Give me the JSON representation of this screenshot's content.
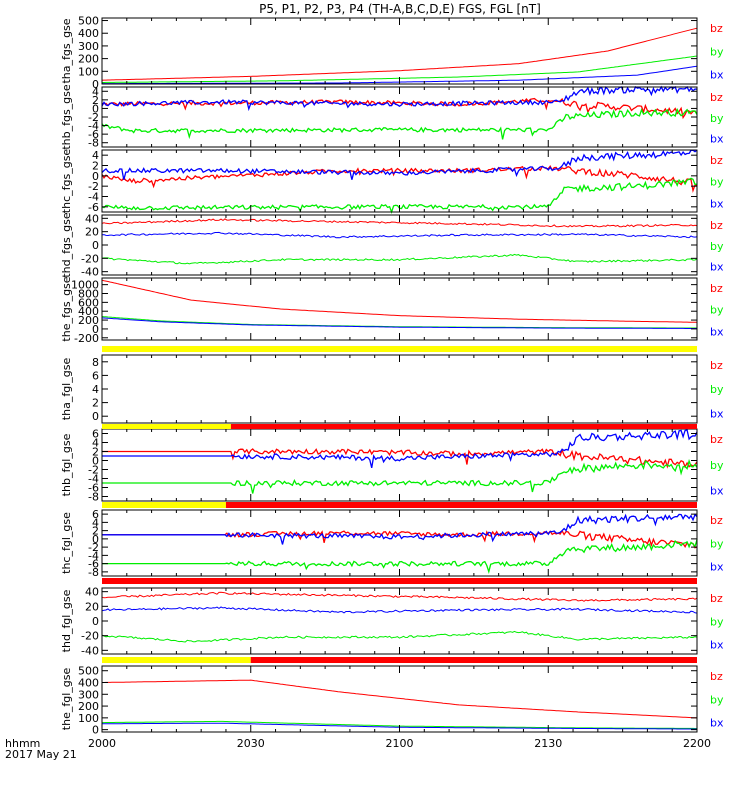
{
  "chart_data": {
    "type": "line",
    "title": "P5, P1, P2, P3, P4 (TH-A,B,C,D,E) FGS, FGL [nT]",
    "x_ticks": [
      "2000",
      "2030",
      "2100",
      "2130",
      "2200"
    ],
    "x_footer": {
      "line1": "hhmm",
      "line2": "2017 May 21"
    },
    "series_names": [
      "bz",
      "by",
      "bx"
    ],
    "colors": {
      "bz": "#ff0000",
      "by": "#00ee00",
      "bx": "#0000ff",
      "frame": "#000000",
      "flag_yellow": "#ffff00",
      "flag_red": "#ff0000"
    },
    "panels": [
      {
        "ylabel": "tha_fgs_gse",
        "ticks": [
          "0",
          "100",
          "200",
          "300",
          "400",
          "500"
        ],
        "ylim": [
          0,
          520
        ],
        "curves": {
          "bz": [
            [
              0,
              30
            ],
            [
              0.25,
              60
            ],
            [
              0.5,
              105
            ],
            [
              0.7,
              160
            ],
            [
              0.85,
              260
            ],
            [
              1,
              440
            ]
          ],
          "by": [
            [
              0,
              12
            ],
            [
              0.3,
              25
            ],
            [
              0.6,
              55
            ],
            [
              0.8,
              95
            ],
            [
              1,
              220
            ]
          ],
          "bx": [
            [
              0,
              3
            ],
            [
              0.4,
              8
            ],
            [
              0.7,
              30
            ],
            [
              0.9,
              70
            ],
            [
              1,
              140
            ]
          ]
        }
      },
      {
        "ylabel": "thb_fgs_gse",
        "ticks": [
          "-8",
          "-6",
          "-4",
          "-2",
          "0",
          "2",
          "4"
        ],
        "ylim": [
          -9,
          5
        ],
        "curves": {
          "bz": [
            [
              0,
              1
            ],
            [
              0.4,
              1.5
            ],
            [
              0.6,
              1
            ],
            [
              0.75,
              2
            ],
            [
              0.8,
              1
            ],
            [
              0.9,
              0
            ],
            [
              1,
              -1
            ]
          ],
          "by": [
            [
              0,
              -4
            ],
            [
              0.05,
              -5.2
            ],
            [
              0.45,
              -5
            ],
            [
              0.75,
              -5
            ],
            [
              0.78,
              -2
            ],
            [
              0.9,
              -1
            ],
            [
              1,
              -1
            ]
          ],
          "bx": [
            [
              0,
              1
            ],
            [
              0.2,
              1.5
            ],
            [
              0.5,
              1
            ],
            [
              0.77,
              1.5
            ],
            [
              0.8,
              4
            ],
            [
              0.9,
              4.5
            ],
            [
              1,
              4.5
            ]
          ]
        }
      },
      {
        "ylabel": "thc_fgs_gse",
        "ticks": [
          "-6",
          "-4",
          "-2",
          "0",
          "2",
          "4"
        ],
        "ylim": [
          -7,
          5
        ],
        "curves": {
          "bz": [
            [
              0,
              0
            ],
            [
              0.05,
              -1
            ],
            [
              0.4,
              1
            ],
            [
              0.6,
              1
            ],
            [
              0.75,
              1.5
            ],
            [
              0.8,
              1
            ],
            [
              0.9,
              0
            ],
            [
              1,
              -1.5
            ]
          ],
          "by": [
            [
              0,
              -6
            ],
            [
              0.05,
              -6.2
            ],
            [
              0.45,
              -6
            ],
            [
              0.75,
              -6
            ],
            [
              0.78,
              -2.5
            ],
            [
              0.9,
              -2
            ],
            [
              1,
              -1
            ]
          ],
          "bx": [
            [
              0,
              1
            ],
            [
              0.2,
              1
            ],
            [
              0.5,
              0.5
            ],
            [
              0.77,
              1.5
            ],
            [
              0.8,
              3.5
            ],
            [
              0.9,
              4
            ],
            [
              1,
              4.5
            ]
          ]
        }
      },
      {
        "ylabel": "thd_fgs_gse",
        "ticks": [
          "-40",
          "-20",
          "0",
          "20",
          "40"
        ],
        "ylim": [
          -45,
          45
        ],
        "curves": {
          "bz": [
            [
              0,
              32
            ],
            [
              0.2,
              38
            ],
            [
              0.4,
              35
            ],
            [
              0.6,
              32
            ],
            [
              0.8,
              28
            ],
            [
              1,
              30
            ]
          ],
          "by": [
            [
              0,
              -20
            ],
            [
              0.15,
              -28
            ],
            [
              0.3,
              -22
            ],
            [
              0.5,
              -22
            ],
            [
              0.7,
              -15
            ],
            [
              0.8,
              -25
            ],
            [
              1,
              -22
            ]
          ],
          "bx": [
            [
              0,
              15
            ],
            [
              0.2,
              18
            ],
            [
              0.4,
              12
            ],
            [
              0.6,
              15
            ],
            [
              0.8,
              16
            ],
            [
              1,
              12
            ]
          ]
        }
      },
      {
        "ylabel": "the_fgs_gse",
        "ticks": [
          "-200",
          "0",
          "200",
          "400",
          "600",
          "800",
          "1000"
        ],
        "ylim": [
          -250,
          1150
        ],
        "curves": {
          "bz": [
            [
              0,
              1100
            ],
            [
              0.15,
              650
            ],
            [
              0.3,
              450
            ],
            [
              0.5,
              300
            ],
            [
              0.7,
              220
            ],
            [
              0.9,
              170
            ],
            [
              1,
              150
            ]
          ],
          "by": [
            [
              0,
              280
            ],
            [
              0.1,
              180
            ],
            [
              0.25,
              100
            ],
            [
              0.5,
              50
            ],
            [
              0.75,
              30
            ],
            [
              1,
              20
            ]
          ],
          "bx": [
            [
              0,
              250
            ],
            [
              0.1,
              160
            ],
            [
              0.25,
              90
            ],
            [
              0.5,
              40
            ],
            [
              0.75,
              20
            ],
            [
              1,
              10
            ]
          ]
        }
      },
      {
        "ylabel": "tha_fgl_gse",
        "ticks": [
          "0",
          "2",
          "4",
          "6",
          "8"
        ],
        "ylim": [
          -1,
          9
        ],
        "curves": {}
      },
      {
        "ylabel": "thb_fgl_gse",
        "ticks": [
          "-8",
          "-6",
          "-4",
          "-2",
          "0",
          "2",
          "4",
          "6"
        ],
        "ylim": [
          -9,
          7
        ],
        "start": 0.2167,
        "curves": {
          "bz": [
            [
              0,
              2
            ],
            [
              0.2167,
              2
            ],
            [
              0.4,
              2
            ],
            [
              0.6,
              1.5
            ],
            [
              0.75,
              2
            ],
            [
              0.8,
              1
            ],
            [
              0.9,
              0
            ],
            [
              1,
              -1
            ]
          ],
          "by": [
            [
              0,
              -5
            ],
            [
              0.2167,
              -5
            ],
            [
              0.45,
              -5
            ],
            [
              0.75,
              -5
            ],
            [
              0.78,
              -2
            ],
            [
              0.9,
              -1
            ],
            [
              1,
              -1
            ]
          ],
          "bx": [
            [
              0,
              1
            ],
            [
              0.2167,
              1
            ],
            [
              0.5,
              0.5
            ],
            [
              0.77,
              1.5
            ],
            [
              0.8,
              5
            ],
            [
              0.9,
              5.5
            ],
            [
              1,
              6
            ]
          ]
        }
      },
      {
        "ylabel": "thc_fgl_gse",
        "ticks": [
          "-8",
          "-6",
          "-4",
          "-2",
          "0",
          "2",
          "4",
          "6"
        ],
        "ylim": [
          -9,
          7
        ],
        "start": 0.2083,
        "curves": {
          "bz": [
            [
              0,
              1
            ],
            [
              0.2083,
              1
            ],
            [
              0.4,
              1.5
            ],
            [
              0.6,
              1
            ],
            [
              0.75,
              1.5
            ],
            [
              0.8,
              1
            ],
            [
              0.9,
              -0.5
            ],
            [
              1,
              -1.5
            ]
          ],
          "by": [
            [
              0,
              -6
            ],
            [
              0.2083,
              -6
            ],
            [
              0.45,
              -6
            ],
            [
              0.75,
              -6
            ],
            [
              0.78,
              -2.5
            ],
            [
              0.9,
              -2
            ],
            [
              1,
              -1
            ]
          ],
          "bx": [
            [
              0,
              1
            ],
            [
              0.2083,
              1
            ],
            [
              0.5,
              0.5
            ],
            [
              0.77,
              1.5
            ],
            [
              0.8,
              4.5
            ],
            [
              0.9,
              5
            ],
            [
              1,
              5.5
            ]
          ]
        }
      },
      {
        "ylabel": "thd_fgl_gse",
        "ticks": [
          "-40",
          "-20",
          "0",
          "20",
          "40"
        ],
        "ylim": [
          -45,
          45
        ],
        "curves": {
          "bz": [
            [
              0,
              32
            ],
            [
              0.2,
              38
            ],
            [
              0.4,
              35
            ],
            [
              0.6,
              32
            ],
            [
              0.8,
              28
            ],
            [
              1,
              30
            ]
          ],
          "by": [
            [
              0,
              -20
            ],
            [
              0.15,
              -28
            ],
            [
              0.3,
              -22
            ],
            [
              0.5,
              -22
            ],
            [
              0.7,
              -15
            ],
            [
              0.8,
              -25
            ],
            [
              1,
              -22
            ]
          ],
          "bx": [
            [
              0,
              15
            ],
            [
              0.2,
              18
            ],
            [
              0.4,
              12
            ],
            [
              0.6,
              15
            ],
            [
              0.8,
              16
            ],
            [
              1,
              12
            ]
          ]
        }
      },
      {
        "ylabel": "the_fgl_gse",
        "ticks": [
          "0",
          "100",
          "200",
          "300",
          "400",
          "500"
        ],
        "ylim": [
          -20,
          540
        ],
        "curves": {
          "bz": [
            [
              0,
              400
            ],
            [
              0.25,
              420
            ],
            [
              0.4,
              320
            ],
            [
              0.6,
              210
            ],
            [
              0.8,
              150
            ],
            [
              1,
              100
            ]
          ],
          "by": [
            [
              0,
              60
            ],
            [
              0.2,
              70
            ],
            [
              0.5,
              30
            ],
            [
              0.8,
              15
            ],
            [
              1,
              10
            ]
          ],
          "bx": [
            [
              0,
              50
            ],
            [
              0.2,
              55
            ],
            [
              0.5,
              20
            ],
            [
              0.8,
              10
            ],
            [
              1,
              5
            ]
          ]
        }
      }
    ],
    "flag_bars": [
      {
        "after_panel": 4,
        "segments": [
          {
            "from": 0,
            "to": 1,
            "color": "#ffff00"
          }
        ]
      },
      {
        "after_panel": 5,
        "segments": [
          {
            "from": 0,
            "to": 0.2167,
            "color": "#ffff00"
          },
          {
            "from": 0.2167,
            "to": 1,
            "color": "#ff0000"
          }
        ]
      },
      {
        "after_panel": 6,
        "segments": [
          {
            "from": 0,
            "to": 0.2083,
            "color": "#ffff00"
          },
          {
            "from": 0.2083,
            "to": 1,
            "color": "#ff0000"
          }
        ]
      },
      {
        "after_panel": 7,
        "segments": [
          {
            "from": 0,
            "to": 1,
            "color": "#ff0000"
          }
        ]
      },
      {
        "after_panel": 8,
        "segments": [
          {
            "from": 0,
            "to": 0.25,
            "color": "#ffff00"
          },
          {
            "from": 0.25,
            "to": 1,
            "color": "#ff0000"
          }
        ]
      }
    ]
  }
}
